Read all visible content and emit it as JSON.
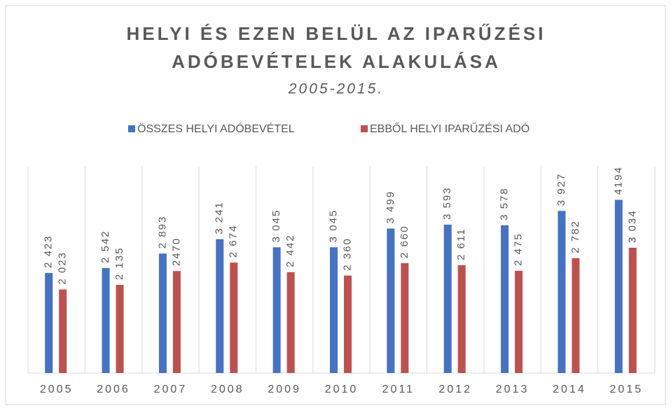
{
  "chart_data": {
    "type": "bar",
    "title": [
      "HELYI ÉS EZEN BELÜL AZ IPARŰZÉSI",
      "ADÓBEVÉTELEK ALAKULÁSA"
    ],
    "subtitle": "2005-2015.",
    "categories": [
      "2005",
      "2006",
      "2007",
      "2008",
      "2009",
      "2010",
      "2011",
      "2012",
      "2013",
      "2014",
      "2015"
    ],
    "series": [
      {
        "name": "ÖSSZES HELYI ADÓBEVÉTEL",
        "color": "#4472c4",
        "values": [
          2423,
          2542,
          2893,
          3241,
          3045,
          3045,
          3499,
          3593,
          3578,
          3927,
          4194
        ],
        "value_labels": [
          "2 423",
          "2 542",
          "2 893",
          "3 241",
          "3 045",
          "3 045",
          "3 499",
          "3 593",
          "3 578",
          "3 927",
          "4194"
        ]
      },
      {
        "name": "EBBŐL HELYI IPARŰZÉSI ADÓ",
        "color": "#c0504d",
        "values": [
          2023,
          2135,
          2470,
          2674,
          2442,
          2360,
          2660,
          2611,
          2475,
          2782,
          3034
        ],
        "value_labels": [
          "2 023",
          "2 135",
          "2470",
          "2 674",
          "2 442",
          "2 360",
          "2 660",
          "2 611",
          "2 475",
          "2 782",
          "3 034"
        ]
      }
    ],
    "ylim": [
      0,
      5000
    ],
    "legend": "top"
  }
}
